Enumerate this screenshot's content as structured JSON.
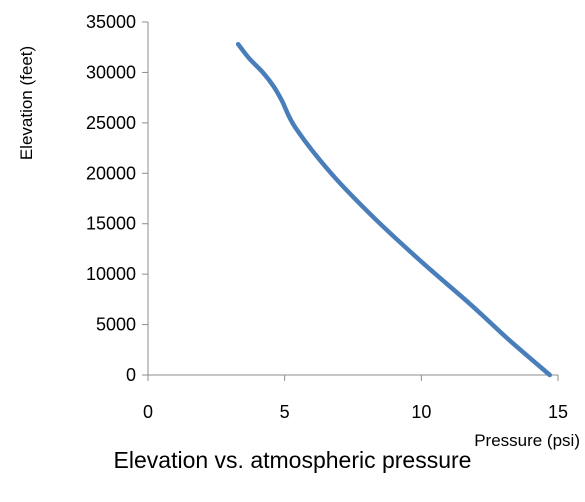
{
  "chart_data": {
    "type": "line",
    "xlabel": "Pressure (psi)",
    "ylabel": "Elevation (feet)",
    "caption": "Elevation vs. atmospheric pressure",
    "xlim": [
      0,
      15
    ],
    "ylim": [
      0,
      35000
    ],
    "x_ticks": [
      0,
      5,
      10,
      15
    ],
    "y_ticks": [
      0,
      5000,
      10000,
      15000,
      20000,
      25000,
      30000,
      35000
    ],
    "grid": false,
    "legend": "none",
    "line_color": "#4A7EBB",
    "series": [
      {
        "x": [
          14.7,
          13.2,
          11.8,
          10.1,
          8.3,
          6.7,
          5.4,
          4.9,
          4.6,
          4.2,
          3.7,
          3.3
        ],
        "y": [
          0,
          3500,
          7000,
          11000,
          15500,
          20000,
          24500,
          27200,
          28600,
          30000,
          31400,
          32800
        ]
      }
    ]
  }
}
